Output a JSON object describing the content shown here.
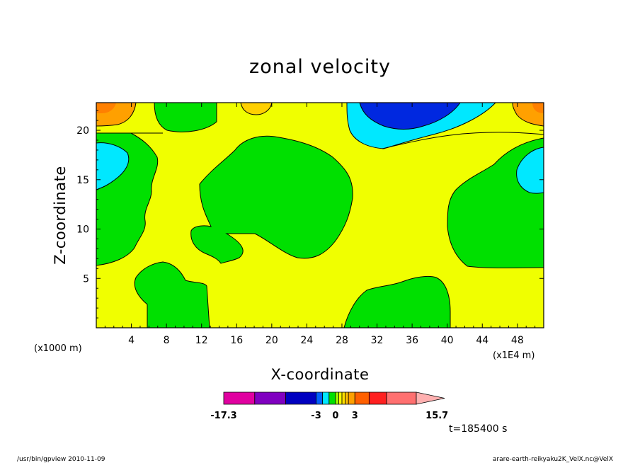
{
  "chart_data": {
    "type": "heatmap",
    "title": "zonal velocity",
    "xlabel": "X-coordinate",
    "ylabel": "Z-coordinate",
    "x_unit": "(x1E4 m)",
    "y_unit": "(x1000 m)",
    "xlim": [
      0,
      51
    ],
    "ylim": [
      0,
      22.8
    ],
    "x_ticks": [
      4,
      8,
      12,
      16,
      20,
      24,
      28,
      32,
      36,
      40,
      44,
      48
    ],
    "y_ticks": [
      5,
      10,
      15,
      20
    ],
    "colorbar": {
      "tick_labels": [
        "-17.3",
        "-3",
        "0",
        "3",
        "15.7"
      ],
      "tick_values": [
        -17.3,
        -3,
        0,
        3,
        15.7
      ],
      "levels": [
        -17.3,
        -12.5,
        -7.7,
        -3,
        -2,
        -1,
        0,
        0.5,
        1,
        1.5,
        2,
        3,
        5.2,
        7.9,
        12.5,
        15.7
      ],
      "colors": [
        "#e000a0",
        "#8000c0",
        "#0000c0",
        "#0060ff",
        "#00e8ff",
        "#00e000",
        "#a0ff00",
        "#ffff00",
        "#ffe000",
        "#ffc000",
        "#ffa000",
        "#ff6000",
        "#ff2020",
        "#ff7070",
        "#ffb0b0"
      ]
    },
    "regions": [
      {
        "name": "background",
        "color": "#f0ff00"
      },
      {
        "name": "band-lower-left",
        "color": "#00e000"
      },
      {
        "name": "band-upper-middle",
        "color": "#00e000"
      },
      {
        "name": "band-right",
        "color": "#00e000"
      },
      {
        "name": "band-bottom-center",
        "color": "#00e000"
      },
      {
        "name": "cyan-top",
        "color": "#00e8ff"
      },
      {
        "name": "blue-top",
        "color": "#0028e0"
      },
      {
        "name": "cyan-left",
        "color": "#00e8ff"
      },
      {
        "name": "cyan-right",
        "color": "#00e8ff"
      },
      {
        "name": "orange-top-left",
        "color": "#ffa000"
      },
      {
        "name": "orange-top-right",
        "color": "#ffa000"
      }
    ]
  },
  "annotations": {
    "time": "t=185400 s",
    "footer_left": "/usr/bin/gpview   2010-11-09",
    "footer_right": "arare-earth-reikyaku2K_VelX.nc@VelX"
  }
}
